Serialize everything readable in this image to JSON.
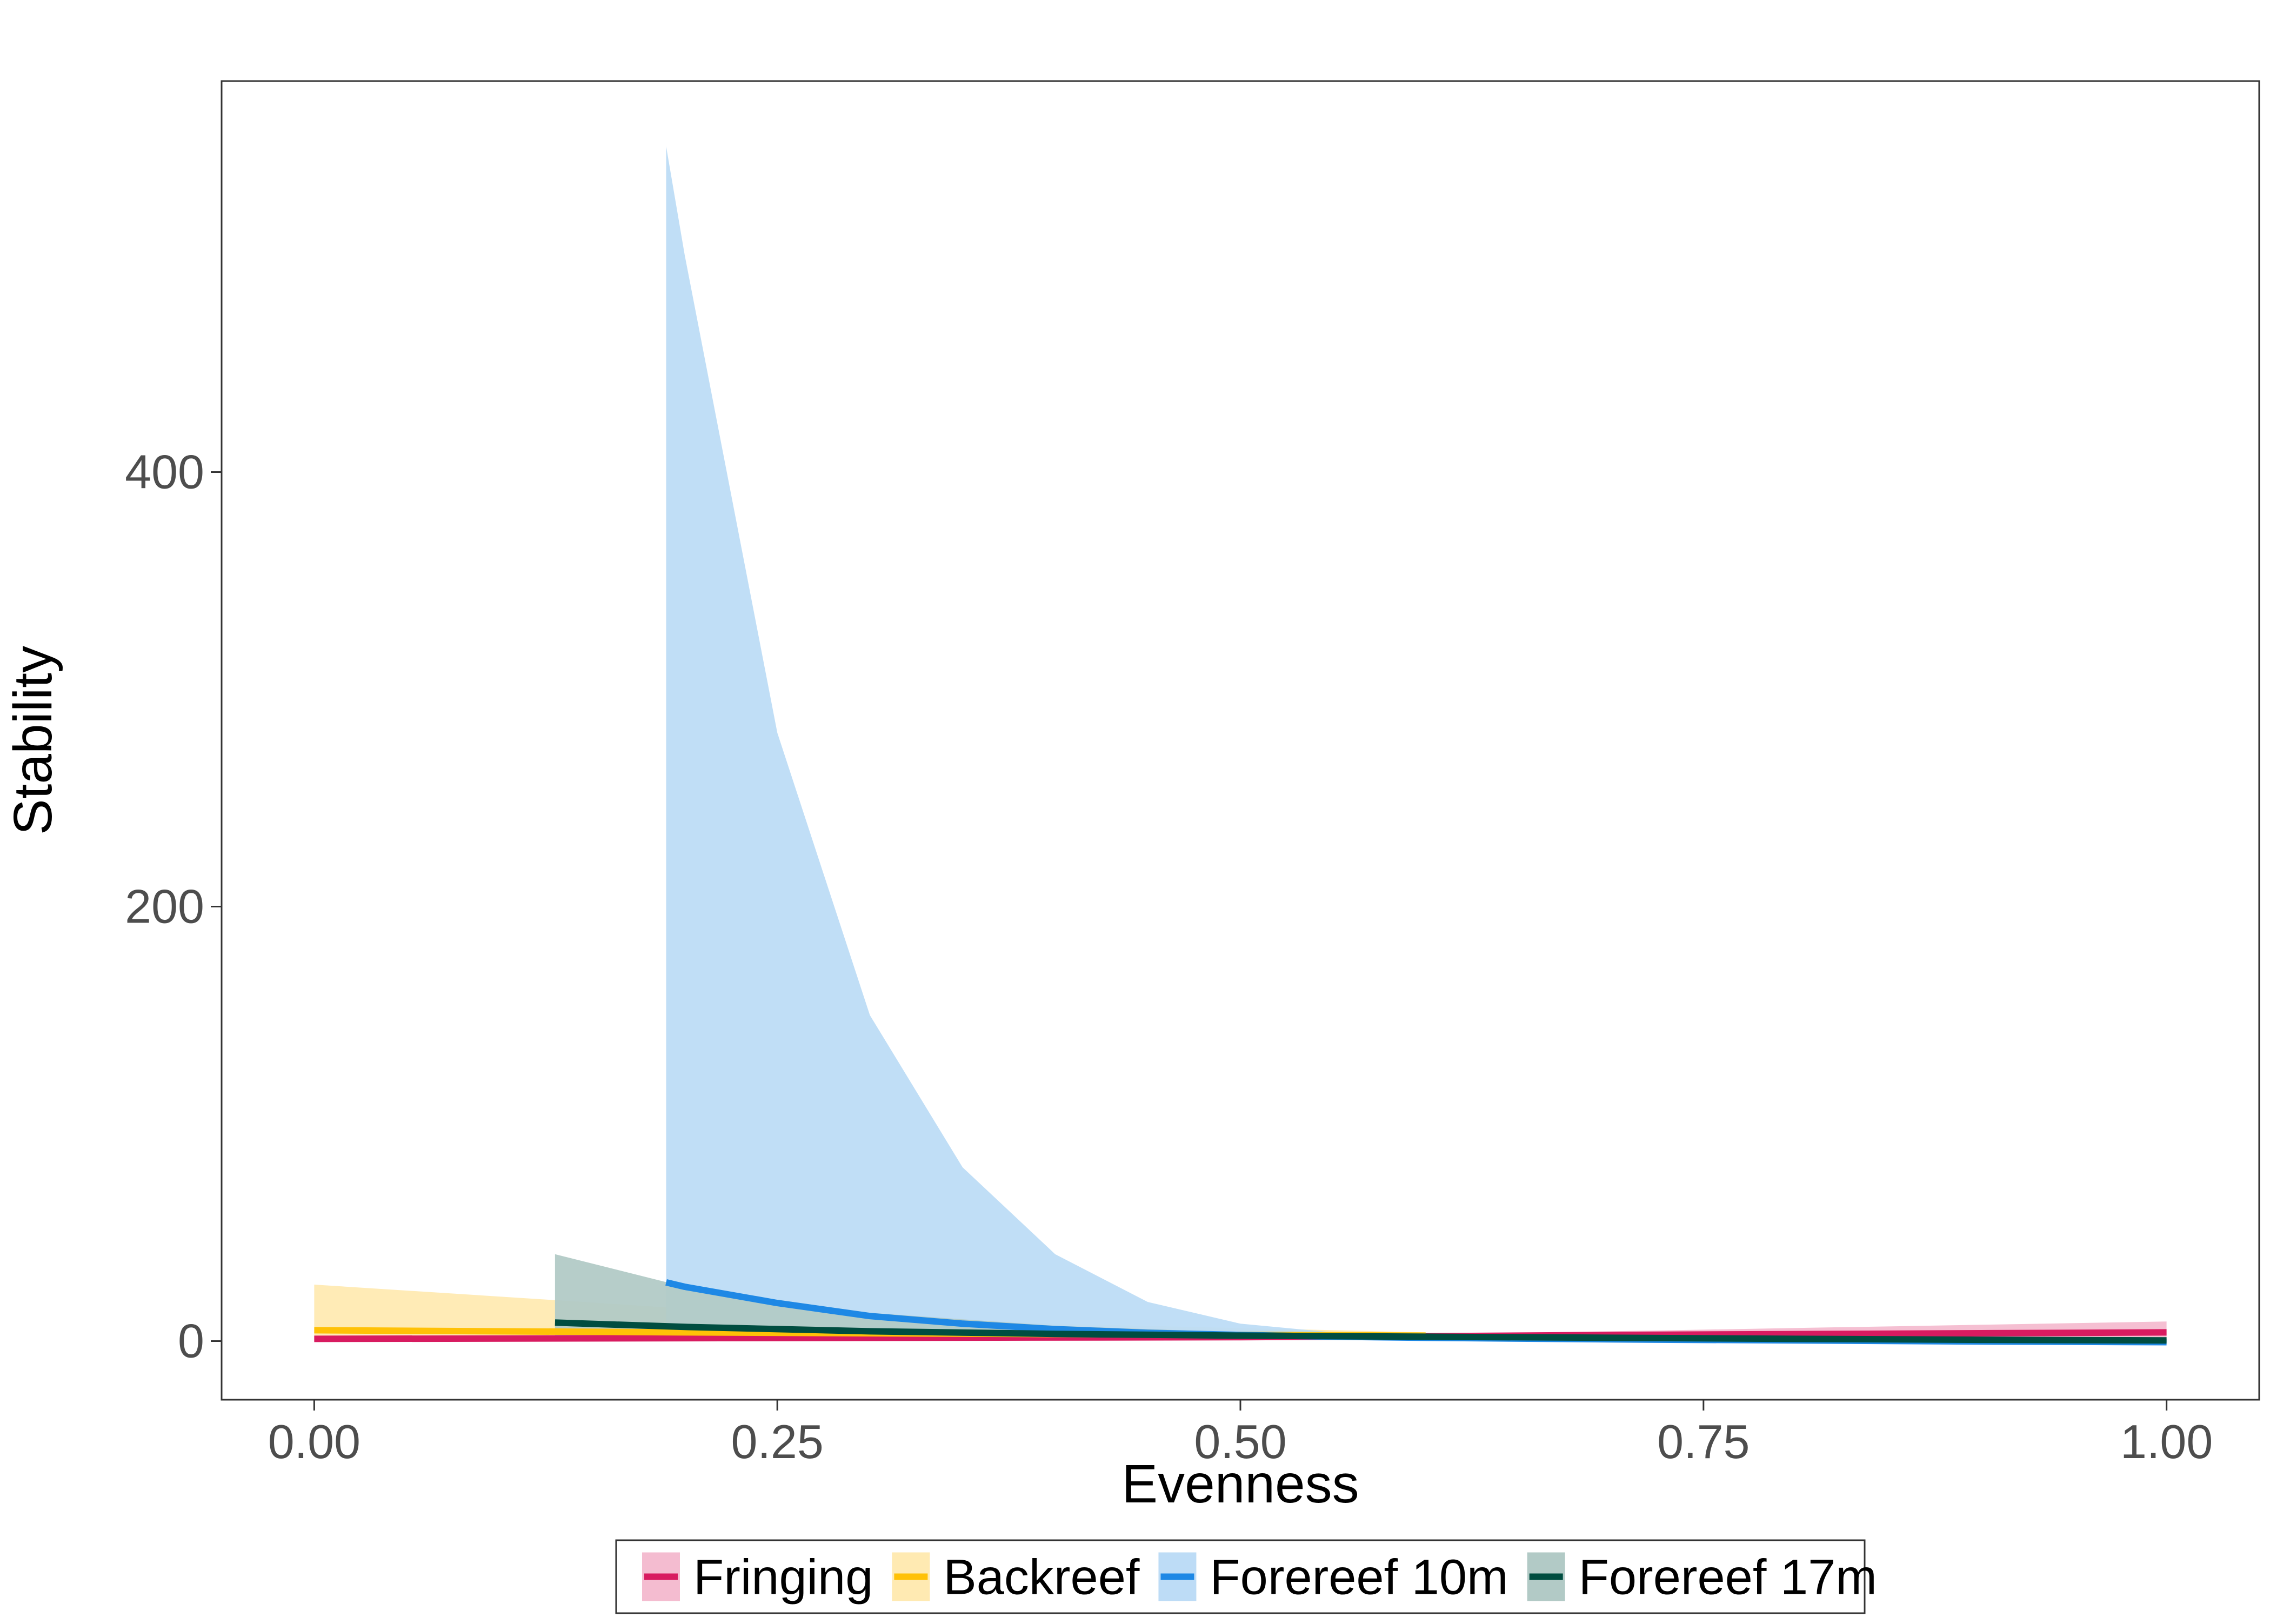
{
  "chart_data": {
    "type": "line",
    "title": "",
    "xlabel": "Evenness",
    "ylabel": "Stability",
    "xlim": [
      -0.05,
      1.05
    ],
    "ylim": [
      -27,
      580
    ],
    "x_ticks": [
      0,
      0.25,
      0.5,
      0.75,
      1.0
    ],
    "x_tick_labels": [
      "0.00",
      "0.25",
      "0.50",
      "0.75",
      "1.00"
    ],
    "y_ticks": [
      0,
      200,
      400
    ],
    "y_tick_labels": [
      "0",
      "200",
      "400"
    ],
    "grid": false,
    "legend_position": "bottom",
    "series": [
      {
        "name": "Fringing",
        "color": "#d81b60",
        "fill": "#f4bcd0",
        "x": [
          0.0,
          0.5,
          0.6,
          0.7,
          0.8,
          0.9,
          1.0
        ],
        "y": [
          1.0,
          1.8,
          2.2,
          2.8,
          3.2,
          3.6,
          4.0
        ],
        "lower": [
          0.0,
          1.0,
          1.5,
          1.8,
          1.8,
          1.6,
          1.5
        ],
        "upper": [
          2.0,
          2.8,
          3.2,
          4.5,
          6.0,
          7.5,
          9.0
        ]
      },
      {
        "name": "Backreef",
        "color": "#ffc107",
        "fill": "#ffeab2",
        "x": [
          0.0,
          0.2,
          0.4,
          0.6
        ],
        "y": [
          5.0,
          4.0,
          3.2,
          2.5
        ],
        "lower": [
          0.0,
          0.5,
          0.8,
          1.2
        ],
        "upper": [
          26.0,
          15.0,
          8.0,
          4.0
        ]
      },
      {
        "name": "Forereef 10m",
        "color": "#1e88e5",
        "fill": "#bddcf6",
        "x": [
          0.19,
          0.2,
          0.25,
          0.3,
          0.35,
          0.4,
          0.45,
          0.5,
          0.55,
          0.6,
          0.7,
          0.8,
          0.9,
          1.0
        ],
        "y": [
          27,
          25,
          17.5,
          11.5,
          8.0,
          5.5,
          3.8,
          2.8,
          2.0,
          1.5,
          0.8,
          0.3,
          -0.2,
          -0.5
        ],
        "lower": [
          5,
          5,
          4,
          3.5,
          3.0,
          2.5,
          2.0,
          1.6,
          1.2,
          0.9,
          0.3,
          -0.2,
          -0.6,
          -1.0
        ],
        "upper": [
          550,
          500,
          280,
          150,
          80,
          40,
          18,
          8,
          4,
          2.5,
          1.2,
          0.8,
          0.5,
          0.3
        ]
      },
      {
        "name": "Forereef 17m",
        "color": "#004d40",
        "fill": "#b2cac6",
        "x": [
          0.13,
          0.2,
          0.3,
          0.4,
          0.5,
          0.6,
          0.7,
          0.8,
          0.9,
          1.0
        ],
        "y": [
          8.5,
          6.5,
          4.5,
          3.3,
          2.5,
          2.0,
          1.5,
          1.0,
          0.6,
          0.3
        ],
        "lower": [
          2.0,
          2.0,
          1.8,
          1.6,
          1.5,
          1.3,
          1.0,
          0.5,
          0.0,
          -0.5
        ],
        "upper": [
          40.0,
          25.0,
          13.0,
          7.0,
          4.0,
          2.8,
          2.0,
          1.6,
          1.3,
          1.0
        ]
      }
    ]
  }
}
